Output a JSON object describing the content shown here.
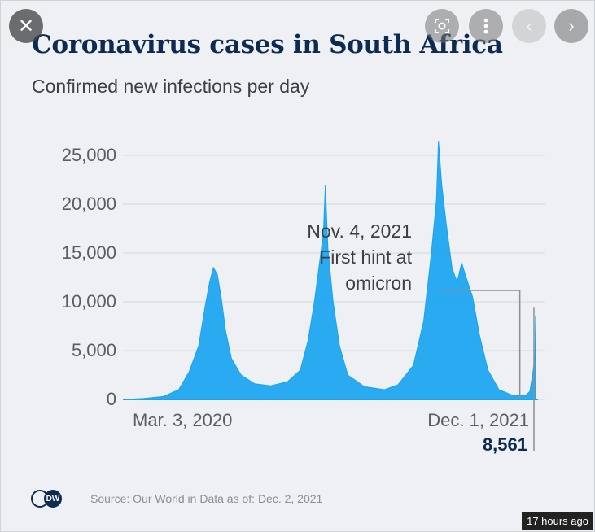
{
  "viewer": {
    "timestamp": "17 hours ago",
    "icons": {
      "close": "close-icon",
      "lens": "lens-icon",
      "more": "more-vertical-icon",
      "prev": "chevron-left-icon",
      "next": "chevron-right-icon"
    }
  },
  "colors": {
    "series": "#19a4f0",
    "title": "#0d2a52",
    "annotation_line": "#8b8f94"
  },
  "footer": {
    "source": "Source: Our World in Data as of: Dec. 2, 2021",
    "logo_text": "DW"
  },
  "chart_data": {
    "type": "area",
    "title": "Coronavirus cases in South Africa",
    "subtitle": "Confirmed new infections per day",
    "xlabel": "",
    "ylabel": "",
    "ylim": [
      0,
      25000
    ],
    "yticks": [
      0,
      5000,
      10000,
      15000,
      20000,
      25000
    ],
    "ytick_labels": [
      "0",
      "5,000",
      "10,000",
      "15,000",
      "20,000",
      "25,000"
    ],
    "x_range": [
      "2020-03-03",
      "2021-12-01"
    ],
    "xtick_labels": [
      {
        "date": "2020-03-03",
        "label": "Mar. 3, 2020"
      },
      {
        "date": "2021-12-01",
        "label": "Dec. 1, 2021"
      }
    ],
    "grid": true,
    "series": [
      {
        "points": [
          [
            "2020-03-03",
            0
          ],
          [
            "2020-04-01",
            100
          ],
          [
            "2020-05-01",
            300
          ],
          [
            "2020-05-25",
            1000
          ],
          [
            "2020-06-10",
            2800
          ],
          [
            "2020-06-25",
            5500
          ],
          [
            "2020-07-05",
            9500
          ],
          [
            "2020-07-12",
            12000
          ],
          [
            "2020-07-18",
            13500
          ],
          [
            "2020-07-24",
            12800
          ],
          [
            "2020-07-30",
            10500
          ],
          [
            "2020-08-06",
            7000
          ],
          [
            "2020-08-15",
            4200
          ],
          [
            "2020-08-30",
            2500
          ],
          [
            "2020-09-20",
            1600
          ],
          [
            "2020-10-15",
            1400
          ],
          [
            "2020-11-10",
            1800
          ],
          [
            "2020-11-30",
            3000
          ],
          [
            "2020-12-12",
            6000
          ],
          [
            "2020-12-22",
            10000
          ],
          [
            "2020-12-30",
            14000
          ],
          [
            "2021-01-05",
            17000
          ],
          [
            "2021-01-08",
            21980
          ],
          [
            "2021-01-12",
            15500
          ],
          [
            "2021-01-20",
            10000
          ],
          [
            "2021-01-30",
            5500
          ],
          [
            "2021-02-12",
            2500
          ],
          [
            "2021-03-10",
            1300
          ],
          [
            "2021-04-10",
            1000
          ],
          [
            "2021-05-01",
            1500
          ],
          [
            "2021-05-25",
            3500
          ],
          [
            "2021-06-10",
            8000
          ],
          [
            "2021-06-22",
            15000
          ],
          [
            "2021-06-30",
            20500
          ],
          [
            "2021-07-03",
            26485
          ],
          [
            "2021-07-08",
            22000
          ],
          [
            "2021-07-15",
            18000
          ],
          [
            "2021-07-24",
            13500
          ],
          [
            "2021-08-01",
            12000
          ],
          [
            "2021-08-08",
            14000
          ],
          [
            "2021-08-15",
            12500
          ],
          [
            "2021-08-25",
            10500
          ],
          [
            "2021-09-05",
            6500
          ],
          [
            "2021-09-18",
            3000
          ],
          [
            "2021-10-05",
            1000
          ],
          [
            "2021-10-25",
            450
          ],
          [
            "2021-11-04",
            380
          ],
          [
            "2021-11-15",
            400
          ],
          [
            "2021-11-22",
            800
          ],
          [
            "2021-11-27",
            2800
          ],
          [
            "2021-11-30",
            4400
          ],
          [
            "2021-12-01",
            8561
          ]
        ]
      }
    ],
    "annotations": [
      {
        "date": "2021-11-04",
        "value": 10000,
        "text": [
          "Nov. 4, 2021",
          "First hint at",
          "omicron"
        ]
      },
      {
        "date": "2021-12-01",
        "value": 8561,
        "text": [
          "8,561"
        ]
      }
    ]
  }
}
